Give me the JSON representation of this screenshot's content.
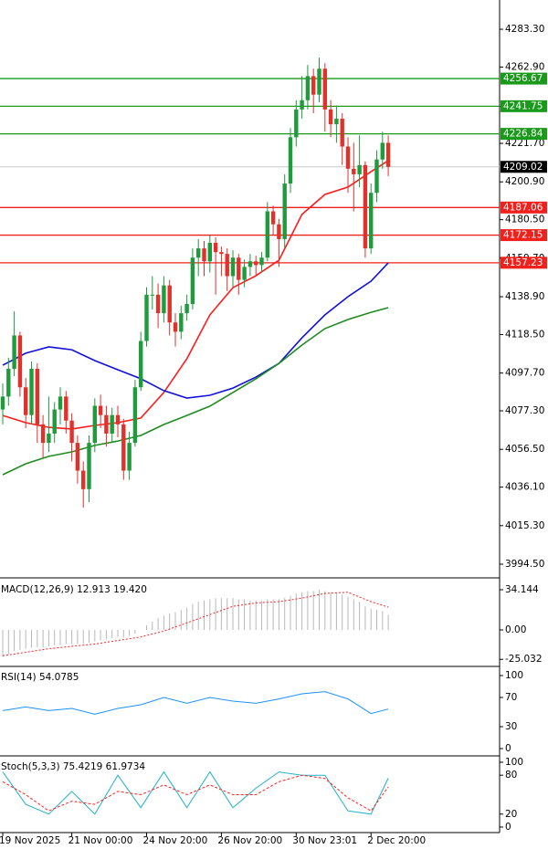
{
  "chart_data": [
    {
      "type": "candlestick",
      "categories": [
        "19 Nov 2025",
        null,
        null,
        null,
        null,
        null,
        null,
        null,
        null,
        null,
        null,
        null,
        "21 Nov 00:00",
        null,
        null,
        null,
        null,
        null,
        null,
        null,
        null,
        null,
        null,
        null,
        null,
        "24 Nov 20:00",
        null,
        null,
        null,
        null,
        null,
        null,
        null,
        null,
        null,
        null,
        null,
        null,
        "26 Nov 20:00",
        null,
        null,
        null,
        null,
        null,
        null,
        null,
        null,
        null,
        null,
        null,
        null,
        "30 Nov 23:01",
        null,
        null,
        null,
        null,
        null,
        null,
        null,
        null,
        null,
        null,
        null,
        null,
        "2 Dec 20:00",
        null,
        null,
        null
      ],
      "open": [
        4078,
        4085,
        4100,
        4118,
        4090,
        4075,
        4100,
        4070,
        4060,
        4065,
        4078,
        4085,
        4072,
        4060,
        4045,
        4035,
        4060,
        4080,
        4075,
        4065,
        4075,
        4070,
        4045,
        4060,
        4090,
        4115,
        4140,
        4140,
        4130,
        4145,
        4125,
        4120,
        4130,
        4135,
        4160,
        4165,
        4158,
        4168,
        4163,
        4162,
        4150,
        4160,
        4148,
        4155,
        4158,
        4156,
        4160,
        4185,
        4178,
        4170,
        4200,
        4225,
        4240,
        4245,
        4258,
        4248,
        4262,
        4240,
        4232,
        4235,
        4220,
        4208,
        4205,
        4210,
        4165,
        4195,
        4213,
        4222
      ],
      "high": [
        4092,
        4106,
        4131,
        4120,
        4095,
        4104,
        4103,
        4075,
        4085,
        4082,
        4090,
        4088,
        4076,
        4064,
        4050,
        4064,
        4084,
        4086,
        4080,
        4079,
        4080,
        4073,
        4066,
        4094,
        4120,
        4144,
        4150,
        4146,
        4150,
        4148,
        4130,
        4134,
        4140,
        4165,
        4170,
        4169,
        4172,
        4171,
        4166,
        4165,
        4164,
        4162,
        4159,
        4162,
        4161,
        4163,
        4190,
        4188,
        4181,
        4205,
        4230,
        4245,
        4258,
        4264,
        4262,
        4268,
        4265,
        4245,
        4242,
        4238,
        4225,
        4222,
        4226,
        4212,
        4200,
        4218,
        4228,
        4226
      ],
      "low": [
        4070,
        4080,
        4096,
        4085,
        4068,
        4070,
        4060,
        4052,
        4055,
        4060,
        4070,
        4065,
        4050,
        4038,
        4025,
        4028,
        4055,
        4068,
        4058,
        4060,
        4063,
        4040,
        4040,
        4058,
        4088,
        4112,
        4132,
        4122,
        4125,
        4118,
        4112,
        4116,
        4126,
        4132,
        4150,
        4150,
        4152,
        4140,
        4150,
        4142,
        4144,
        4140,
        4144,
        4150,
        4150,
        4152,
        4158,
        4172,
        4155,
        4165,
        4195,
        4220,
        4235,
        4240,
        4238,
        4244,
        4228,
        4225,
        4222,
        4210,
        4195,
        4185,
        4198,
        4160,
        4162,
        4190,
        4208,
        4204
      ],
      "close": [
        4085,
        4100,
        4118,
        4090,
        4075,
        4100,
        4070,
        4060,
        4065,
        4078,
        4085,
        4072,
        4060,
        4045,
        4035,
        4060,
        4080,
        4075,
        4065,
        4075,
        4070,
        4045,
        4060,
        4090,
        4115,
        4140,
        4140,
        4130,
        4145,
        4125,
        4120,
        4130,
        4135,
        4160,
        4165,
        4158,
        4168,
        4163,
        4162,
        4150,
        4160,
        4148,
        4155,
        4158,
        4156,
        4160,
        4185,
        4178,
        4170,
        4200,
        4225,
        4240,
        4245,
        4258,
        4248,
        4262,
        4240,
        4232,
        4235,
        4220,
        4208,
        4205,
        4210,
        4165,
        4195,
        4213,
        4222,
        4209.02
      ],
      "up_color": "#1f9a3c",
      "down_color": "#e2302b",
      "ylim": [
        3987.6,
        4299.1
      ],
      "yticks": [
        {
          "value": 4283.3,
          "label": "4283.30"
        },
        {
          "value": 4262.9,
          "label": "4262.90"
        },
        {
          "value": 4241.7,
          "label": "4241.70"
        },
        {
          "value": 4221.7,
          "label": "4221.70"
        },
        {
          "value": 4200.9,
          "label": "4200.90"
        },
        {
          "value": 4180.5,
          "label": "4180.50"
        },
        {
          "value": 4159.7,
          "label": "4159.70"
        },
        {
          "value": 4138.9,
          "label": "4138.90"
        },
        {
          "value": 4118.5,
          "label": "4118.50"
        },
        {
          "value": 4097.7,
          "label": "4097.70"
        },
        {
          "value": 4077.3,
          "label": "4077.30"
        },
        {
          "value": 4056.5,
          "label": "4056.50"
        },
        {
          "value": 4036.1,
          "label": "4036.10"
        },
        {
          "value": 4015.3,
          "label": "4015.30"
        },
        {
          "value": 3994.5,
          "label": "3994.50"
        }
      ],
      "levels": [
        {
          "value": 4256.67,
          "color": "#1a9a1a"
        },
        {
          "value": 4241.75,
          "color": "#1a9a1a"
        },
        {
          "value": 4226.84,
          "color": "#1a9a1a"
        },
        {
          "value": 4187.06,
          "color": "#f0201c"
        },
        {
          "value": 4172.15,
          "color": "#f0201c"
        },
        {
          "value": 4157.23,
          "color": "#f0201c"
        }
      ],
      "series": [
        {
          "color": "#ff1a1a",
          "x": [
            0,
            4,
            8,
            12,
            16,
            20,
            24,
            28,
            32,
            36,
            40,
            44,
            48,
            52,
            56,
            60,
            64,
            67
          ],
          "values": [
            4074.8,
            4070.9,
            4068.4,
            4067.5,
            4069.4,
            4070.9,
            4073.4,
            4087.2,
            4105.4,
            4129.1,
            4143.8,
            4150.2,
            4158.6,
            4183.3,
            4194.1,
            4198.1,
            4206.4,
            4212.4
          ]
        },
        {
          "color": "#1010e0",
          "x": [
            0,
            4,
            8,
            12,
            16,
            20,
            24,
            28,
            32,
            36,
            40,
            44,
            48,
            52,
            56,
            60,
            64,
            67
          ],
          "values": [
            4101.9,
            4108.4,
            4111.8,
            4110.3,
            4104.4,
            4099.5,
            4094.6,
            4088.2,
            4084.2,
            4085.7,
            4089.6,
            4095.5,
            4102.9,
            4116.7,
            4129.1,
            4138.9,
            4147.3,
            4157.2
          ]
        },
        {
          "color": "#1e8c1e",
          "x": [
            0,
            4,
            8,
            12,
            16,
            20,
            24,
            28,
            32,
            36,
            40,
            44,
            48,
            52,
            56,
            60,
            64,
            67
          ],
          "values": [
            4042.8,
            4048.7,
            4052.7,
            4055.1,
            4058.6,
            4061.0,
            4064.0,
            4069.9,
            4074.8,
            4079.8,
            4087.2,
            4094.6,
            4102.9,
            4112.8,
            4121.7,
            4126.6,
            4130.5,
            4133.0
          ]
        }
      ]
    },
    {
      "type": "macd",
      "title": "MACD(12,26,9) 12.913 19.420",
      "ylim": [
        -29.5,
        41.9
      ],
      "yticks": [
        34.144,
        {
          "value": 0,
          "label": "0.00"
        },
        -25.032
      ],
      "series": [
        {
          "kind": "bar",
          "color": "#b8b8b8",
          "values": [
            -23,
            -21,
            -18,
            -17,
            -16,
            -15,
            -15,
            -15,
            -14,
            -13,
            -13,
            -12,
            -12,
            -12,
            -12,
            -11,
            -10,
            -9,
            -8,
            -7,
            -6,
            -6,
            -5,
            -3,
            0,
            4,
            7,
            10,
            12,
            14,
            15,
            17,
            19,
            22,
            24,
            25,
            26,
            27,
            27,
            27,
            27,
            26,
            26,
            25,
            25,
            25,
            26,
            26,
            26,
            27,
            29,
            31,
            32,
            33,
            33,
            34,
            33,
            32,
            31,
            30,
            28,
            26,
            24,
            20,
            18,
            17,
            16,
            12.913
          ]
        },
        {
          "kind": "line",
          "style": "dotted",
          "color": "#ff2020",
          "x": [
            0,
            4,
            8,
            12,
            16,
            20,
            24,
            28,
            32,
            36,
            40,
            44,
            48,
            52,
            56,
            60,
            64,
            67
          ],
          "values": [
            -22,
            -19,
            -16,
            -14,
            -12,
            -9,
            -6,
            -1,
            6,
            13,
            20,
            23,
            24,
            27,
            31,
            32,
            24,
            19.42
          ]
        }
      ]
    },
    {
      "type": "rsi",
      "title": "RSI(14) 54.0785",
      "ylim": [
        -7.5,
        110
      ],
      "yticks": [
        100,
        70,
        30,
        0
      ],
      "series": [
        {
          "kind": "line",
          "color": "#1e90ff",
          "x": [
            0,
            4,
            8,
            12,
            16,
            20,
            24,
            28,
            32,
            36,
            40,
            44,
            48,
            52,
            56,
            60,
            64,
            67
          ],
          "values": [
            52,
            57,
            52,
            55,
            47,
            55,
            60,
            70,
            62,
            70,
            65,
            62,
            68,
            75,
            78,
            68,
            48,
            54.0785
          ]
        }
      ]
    },
    {
      "type": "stochastic",
      "title": "Stoch(5,3,3) 75.4219 61.9734",
      "ylim": [
        -8.5,
        107
      ],
      "yticks": [
        100,
        80,
        20,
        0
      ],
      "series": [
        {
          "kind": "line",
          "color": "#20b2c8",
          "x": [
            0,
            4,
            8,
            12,
            16,
            20,
            24,
            28,
            32,
            36,
            40,
            44,
            48,
            52,
            56,
            60,
            64,
            67
          ],
          "values": [
            85,
            35,
            20,
            55,
            20,
            80,
            30,
            85,
            30,
            85,
            30,
            60,
            85,
            80,
            80,
            25,
            20,
            75.4219
          ]
        },
        {
          "kind": "line",
          "style": "dashed",
          "color": "#ff2020",
          "x": [
            0,
            4,
            8,
            12,
            16,
            20,
            24,
            28,
            32,
            36,
            40,
            44,
            48,
            52,
            56,
            60,
            64,
            67
          ],
          "values": [
            70,
            50,
            25,
            40,
            35,
            55,
            50,
            65,
            50,
            65,
            50,
            50,
            70,
            80,
            75,
            45,
            25,
            61.9734
          ]
        }
      ]
    }
  ]
}
